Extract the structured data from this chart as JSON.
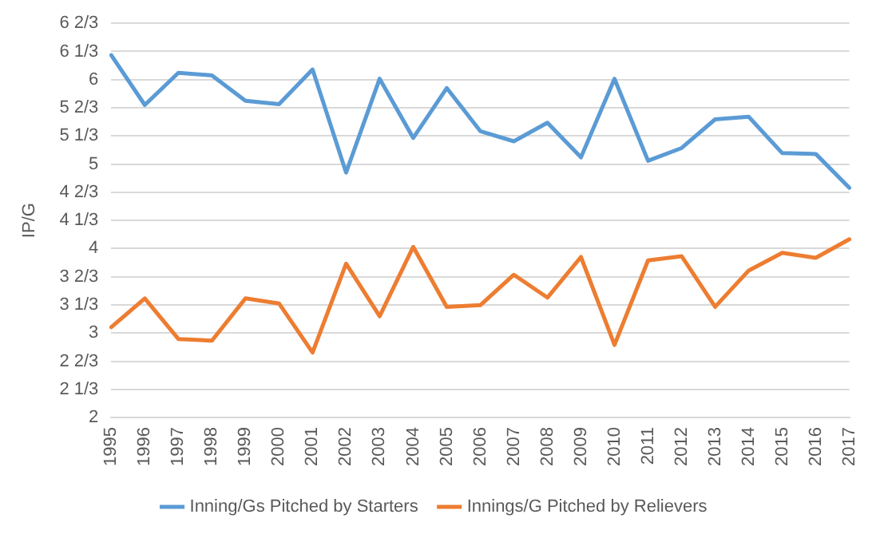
{
  "chart_data": {
    "type": "line",
    "ylabel": "IP/G",
    "categories": [
      "1995",
      "1996",
      "1997",
      "1998",
      "1999",
      "2000",
      "2001",
      "2002",
      "2003",
      "2004",
      "2005",
      "2006",
      "2007",
      "2008",
      "2009",
      "2010",
      "2011",
      "2012",
      "2013",
      "2014",
      "2015",
      "2016",
      "2017"
    ],
    "series": [
      {
        "name": "Inning/Gs Pitched by Starters",
        "color": "#5b9bd5",
        "values": [
          6.29,
          5.7,
          6.08,
          6.05,
          5.75,
          5.71,
          6.12,
          4.9,
          6.01,
          5.31,
          5.9,
          5.39,
          5.27,
          5.49,
          5.08,
          6.01,
          5.04,
          5.19,
          5.53,
          5.56,
          5.13,
          5.12,
          4.72
        ]
      },
      {
        "name": "Innings/G Pitched by Relievers",
        "color": "#ed7d31",
        "values": [
          3.07,
          3.41,
          2.93,
          2.91,
          3.41,
          3.35,
          2.77,
          3.82,
          3.2,
          4.02,
          3.31,
          3.33,
          3.69,
          3.42,
          3.9,
          2.86,
          3.86,
          3.91,
          3.31,
          3.74,
          3.95,
          3.89,
          4.11
        ]
      }
    ],
    "ylim": [
      2,
      6.6667
    ],
    "yticks": [
      2,
      {
        "value": 2.3333,
        "label": "2 1/3"
      },
      {
        "value": 2.6667,
        "label": "2 2/3"
      },
      3,
      {
        "value": 3.3333,
        "label": "3 1/3"
      },
      {
        "value": 3.6667,
        "label": "3 2/3"
      },
      4,
      {
        "value": 4.3333,
        "label": "4 1/3"
      },
      {
        "value": 4.6667,
        "label": "4 2/3"
      },
      5,
      {
        "value": 5.3333,
        "label": "5 1/3"
      },
      {
        "value": 5.6667,
        "label": "5 2/3"
      },
      6,
      {
        "value": 6.3333,
        "label": "6 1/3"
      },
      {
        "value": 6.6667,
        "label": "6 2/3"
      }
    ],
    "grid": "y",
    "legend": "bottom",
    "marker": "none",
    "line_style": "solid"
  }
}
